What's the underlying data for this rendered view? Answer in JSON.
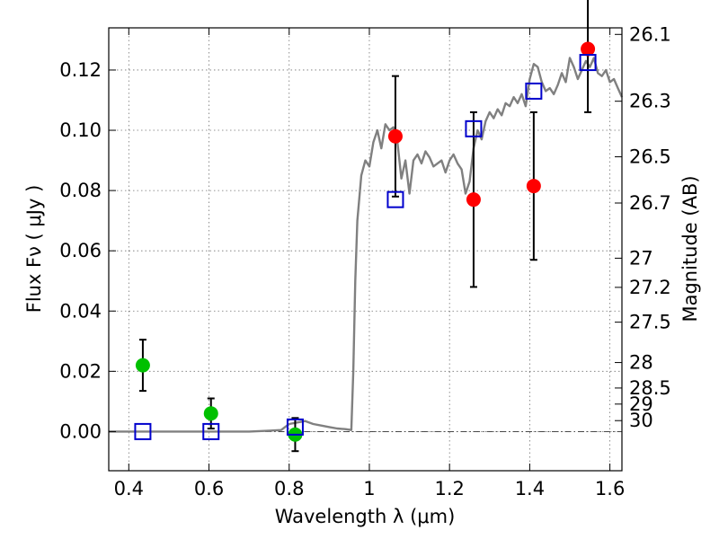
{
  "chart_data": {
    "type": "scatter",
    "xlabel": "Wavelength  λ (μm)",
    "ylabel": "Flux  Fν  ( μJy )",
    "ylabel_right": "Magnitude (AB)",
    "xlim": [
      0.35,
      1.63
    ],
    "ylim": [
      -0.013,
      0.134
    ],
    "x_ticks": [
      0.4,
      0.6,
      0.8,
      1.0,
      1.2,
      1.4,
      1.6
    ],
    "x_tick_labels": [
      "0.4",
      "0.6",
      "0.8",
      "1",
      "1.2",
      "1.4",
      "1.6"
    ],
    "y_ticks": [
      0.0,
      0.02,
      0.04,
      0.06,
      0.08,
      0.1,
      0.12
    ],
    "y_tick_labels": [
      "0.00",
      "0.02",
      "0.04",
      "0.06",
      "0.08",
      "0.10",
      "0.12"
    ],
    "mag_ticks": [
      26.1,
      26.3,
      26.5,
      26.7,
      27,
      27.2,
      27.5,
      28,
      28.5,
      29,
      30
    ],
    "mag_tick_labels": [
      "26.1",
      "26.3",
      "26.5",
      "26.7",
      "27",
      "27.2",
      "27.5",
      "28",
      "28.5",
      "29",
      "30"
    ],
    "grid": true,
    "zero_line": 0.0,
    "series": [
      {
        "name": "model spectrum",
        "type": "line",
        "color": "#808080",
        "x": [
          0.35,
          0.6,
          0.7,
          0.75,
          0.78,
          0.8,
          0.82,
          0.84,
          0.86,
          0.88,
          0.9,
          0.92,
          0.94,
          0.955,
          0.96,
          0.965,
          0.97,
          0.98,
          0.99,
          1.0,
          1.01,
          1.02,
          1.03,
          1.04,
          1.05,
          1.06,
          1.07,
          1.08,
          1.09,
          1.1,
          1.11,
          1.12,
          1.13,
          1.14,
          1.15,
          1.16,
          1.17,
          1.18,
          1.19,
          1.2,
          1.21,
          1.22,
          1.23,
          1.24,
          1.25,
          1.26,
          1.27,
          1.28,
          1.29,
          1.3,
          1.31,
          1.32,
          1.33,
          1.34,
          1.35,
          1.36,
          1.37,
          1.38,
          1.39,
          1.4,
          1.41,
          1.42,
          1.43,
          1.44,
          1.45,
          1.46,
          1.47,
          1.48,
          1.49,
          1.5,
          1.51,
          1.52,
          1.53,
          1.54,
          1.55,
          1.56,
          1.57,
          1.58,
          1.59,
          1.6,
          1.61,
          1.62,
          1.63
        ],
        "y": [
          0.0,
          0.0,
          0.0,
          0.0003,
          0.0005,
          0.0025,
          0.003,
          0.0035,
          0.0025,
          0.002,
          0.0015,
          0.001,
          0.0008,
          0.0005,
          0.02,
          0.05,
          0.07,
          0.085,
          0.09,
          0.088,
          0.096,
          0.1,
          0.094,
          0.102,
          0.1,
          0.101,
          0.096,
          0.084,
          0.09,
          0.079,
          0.09,
          0.092,
          0.089,
          0.093,
          0.091,
          0.088,
          0.089,
          0.09,
          0.086,
          0.09,
          0.092,
          0.089,
          0.087,
          0.079,
          0.083,
          0.094,
          0.1,
          0.097,
          0.103,
          0.106,
          0.104,
          0.107,
          0.105,
          0.109,
          0.108,
          0.111,
          0.109,
          0.112,
          0.108,
          0.117,
          0.122,
          0.121,
          0.116,
          0.113,
          0.114,
          0.112,
          0.115,
          0.119,
          0.116,
          0.124,
          0.121,
          0.117,
          0.12,
          0.123,
          0.121,
          0.124,
          0.119,
          0.118,
          0.12,
          0.116,
          0.117,
          0.114,
          0.111
        ]
      },
      {
        "name": "green detections",
        "type": "errorbar",
        "color": "#00c000",
        "points": [
          {
            "x": 0.435,
            "y": 0.022,
            "err": 0.0085
          },
          {
            "x": 0.605,
            "y": 0.006,
            "err": 0.005
          },
          {
            "x": 0.815,
            "y": -0.001,
            "err": 0.0055
          }
        ]
      },
      {
        "name": "red detections",
        "type": "errorbar",
        "color": "#ff0000",
        "points": [
          {
            "x": 1.065,
            "y": 0.098,
            "err": 0.02
          },
          {
            "x": 1.26,
            "y": 0.077,
            "err": 0.029
          },
          {
            "x": 1.41,
            "y": 0.0815,
            "err": 0.0245
          },
          {
            "x": 1.545,
            "y": 0.127,
            "err": 0.021
          }
        ]
      },
      {
        "name": "model photometry",
        "type": "scatter",
        "marker": "open-square",
        "color": "#0000cc",
        "x": [
          0.435,
          0.605,
          0.815,
          1.065,
          1.26,
          1.41,
          1.545
        ],
        "y": [
          0.0,
          0.0,
          0.0015,
          0.077,
          0.1005,
          0.113,
          0.1225
        ]
      }
    ]
  }
}
